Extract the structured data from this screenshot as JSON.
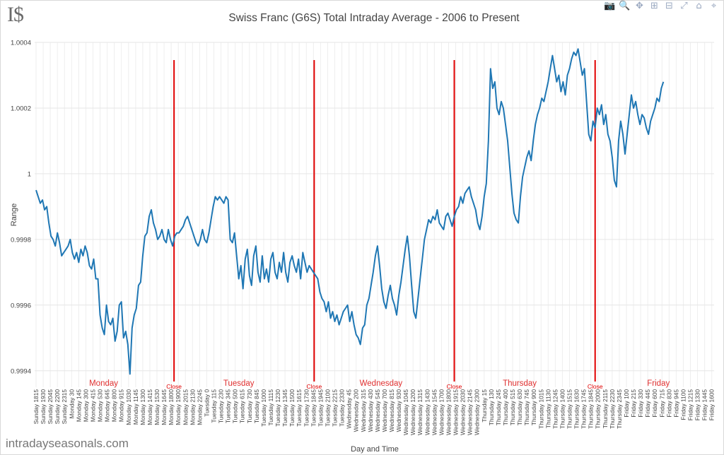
{
  "logo": "I$",
  "title": "Swiss Franc (G6S) Total Intraday Average - 2006 to Present",
  "watermark": "intradayseasonals.com",
  "modebar": [
    {
      "icon": "camera-icon",
      "glyph": "📷"
    },
    {
      "icon": "zoom-icon",
      "glyph": "🔍"
    },
    {
      "icon": "pan-icon",
      "glyph": "✥"
    },
    {
      "icon": "zoom-in-icon",
      "glyph": "⊞"
    },
    {
      "icon": "zoom-out-icon",
      "glyph": "⊟"
    },
    {
      "icon": "autoscale-icon",
      "glyph": "⤢"
    },
    {
      "icon": "home-icon",
      "glyph": "⌂"
    },
    {
      "icon": "spike-lines-icon",
      "glyph": "⌖"
    }
  ],
  "colors": {
    "line": "#1f77b4",
    "marker": "#e00000",
    "day_label": "#e03030",
    "grid": "#eeeeee"
  },
  "chart_data": {
    "type": "line",
    "xlabel": "Day and Time",
    "ylabel": "Range",
    "ylim": [
      0.99935,
      1.0004
    ],
    "yticks": [
      0.9994,
      0.9996,
      0.9998,
      1,
      1.0002,
      1.0004
    ],
    "ytick_labels": [
      "0.9994",
      "0.9996",
      "0.9998",
      "1",
      "1.0002",
      "1.0004"
    ],
    "grid": true,
    "x_tick_labels": [
      "Sunday 1815",
      "Sunday 1930",
      "Sunday 2045",
      "Sunday 2200",
      "Sunday 2315",
      "Monday 30",
      "Monday 145",
      "Monday 300",
      "Monday 415",
      "Monday 530",
      "Monday 645",
      "Monday 800",
      "Monday 915",
      "Monday 1030",
      "Monday 1145",
      "Monday 1300",
      "Monday 1415",
      "Monday 1530",
      "Monday 1645",
      "Monday 1800",
      "Monday 1900",
      "Monday 2015",
      "Monday 2130",
      "Monday 2245",
      "Tuesday 0",
      "Tuesday 115",
      "Tuesday 230",
      "Tuesday 345",
      "Tuesday 500",
      "Tuesday 615",
      "Tuesday 730",
      "Tuesday 845",
      "Tuesday 1000",
      "Tuesday 1115",
      "Tuesday 1230",
      "Tuesday 1345",
      "Tuesday 1500",
      "Tuesday 1615",
      "Tuesday 1730",
      "Tuesday 1845",
      "Tuesday 1945",
      "Tuesday 2100",
      "Tuesday 2215",
      "Tuesday 2330",
      "Wednesday 45",
      "Wednesday 200",
      "Wednesday 315",
      "Wednesday 430",
      "Wednesday 545",
      "Wednesday 700",
      "Wednesday 815",
      "Wednesday 930",
      "Wednesday 1045",
      "Wednesday 1200",
      "Wednesday 1315",
      "Wednesday 1430",
      "Wednesday 1545",
      "Wednesday 1700",
      "Wednesday 1800",
      "Wednesday 1915",
      "Wednesday 2030",
      "Wednesday 2145",
      "Wednesday 2300",
      "Thursday 15",
      "Thursday 130",
      "Thursday 245",
      "Thursday 400",
      "Thursday 515",
      "Thursday 630",
      "Thursday 745",
      "Thursday 900",
      "Thursday 1015",
      "Thursday 1130",
      "Thursday 1245",
      "Thursday 1400",
      "Thursday 1515",
      "Thursday 1630",
      "Thursday 1745",
      "Thursday 1845",
      "Thursday 2000",
      "Thursday 2115",
      "Thursday 2230",
      "Thursday 2345",
      "Friday 100",
      "Friday 215",
      "Friday 330",
      "Friday 445",
      "Friday 600",
      "Friday 715",
      "Friday 830",
      "Friday 945",
      "Friday 1100",
      "Friday 1215",
      "Friday 1330",
      "Friday 1445",
      "Friday 1600"
    ],
    "day_labels": [
      {
        "label": "Monday",
        "tick_index": 9.5
      },
      {
        "label": "Tuesday",
        "tick_index": 28.5
      },
      {
        "label": "Wednesday",
        "tick_index": 48.5
      },
      {
        "label": "Thursday",
        "tick_index": 68
      },
      {
        "label": "Friday",
        "tick_index": 87.5
      }
    ],
    "close_markers": [
      {
        "label": "Close",
        "tick_index": 19.4
      },
      {
        "label": "Close",
        "tick_index": 39.1
      },
      {
        "label": "Close",
        "tick_index": 58.8
      },
      {
        "label": "Close",
        "tick_index": 78.6
      }
    ],
    "series": [
      {
        "x_tick_index": [
          0,
          0.3,
          0.6,
          0.9,
          1.2,
          1.5,
          1.8,
          2.1,
          2.4,
          2.7,
          3,
          3.3,
          3.6,
          3.9,
          4.2,
          4.5,
          4.8,
          5.1,
          5.4,
          5.7,
          6,
          6.3,
          6.6,
          6.9,
          7.2,
          7.5,
          7.8,
          8.1,
          8.4,
          8.7,
          9,
          9.3,
          9.6,
          9.9,
          10.2,
          10.5,
          10.8,
          11.1,
          11.4,
          11.7,
          12,
          12.3,
          12.6,
          12.9,
          13.2,
          13.5,
          13.8,
          14.1,
          14.4,
          14.7,
          15,
          15.3,
          15.6,
          15.9,
          16.2,
          16.5,
          16.8,
          17.1,
          17.4,
          17.7,
          18,
          18.3,
          18.6,
          18.9,
          19.2,
          19.5,
          19.8,
          20.1,
          20.4,
          20.7,
          21,
          21.3,
          21.6,
          21.9,
          22.2,
          22.5,
          22.8,
          23.1,
          23.4,
          23.7,
          24,
          24.3,
          24.6,
          24.9,
          25.2,
          25.5,
          25.8,
          26.1,
          26.4,
          26.7,
          27,
          27.3,
          27.6,
          27.9,
          28.2,
          28.5,
          28.8,
          29.1,
          29.4,
          29.7,
          30,
          30.3,
          30.6,
          30.9,
          31.2,
          31.5,
          31.8,
          32.1,
          32.4,
          32.7,
          33,
          33.3,
          33.6,
          33.9,
          34.2,
          34.5,
          34.8,
          35.1,
          35.4,
          35.7,
          36,
          36.3,
          36.6,
          36.9,
          37.2,
          37.5,
          37.8,
          38.1,
          38.4,
          38.7,
          39,
          39.3,
          39.6,
          39.9,
          40.2,
          40.5,
          40.8,
          41.1,
          41.4,
          41.7,
          42,
          42.3,
          42.6,
          42.9,
          43.2,
          43.5,
          43.8,
          44.1,
          44.4,
          44.7,
          45,
          45.3,
          45.6,
          45.9,
          46.2,
          46.5,
          46.8,
          47.1,
          47.4,
          47.7,
          48,
          48.3,
          48.6,
          48.9,
          49.2,
          49.5,
          49.8,
          50.1,
          50.4,
          50.7,
          51,
          51.3,
          51.6,
          51.9,
          52.2,
          52.5,
          52.8,
          53.1,
          53.4,
          53.7,
          54,
          54.3,
          54.6,
          54.9,
          55.2,
          55.5,
          55.8,
          56.1,
          56.4,
          56.7,
          57,
          57.3,
          57.6,
          57.9,
          58.2,
          58.5,
          58.8,
          59.1,
          59.4,
          59.7,
          60,
          60.3,
          60.6,
          60.9,
          61.2,
          61.5,
          61.8,
          62.1,
          62.4,
          62.7,
          63,
          63.3,
          63.6,
          63.9,
          64.2,
          64.5,
          64.8,
          65.1,
          65.4,
          65.7,
          66,
          66.3,
          66.6,
          66.9,
          67.2,
          67.5,
          67.8,
          68.1,
          68.4,
          68.7,
          69,
          69.3,
          69.6,
          69.9,
          70.2,
          70.5,
          70.8,
          71.1,
          71.4,
          71.7,
          72,
          72.3,
          72.6,
          72.9,
          73.2,
          73.5,
          73.8,
          74.1,
          74.4,
          74.7,
          75,
          75.3,
          75.6,
          75.9,
          76.2,
          76.5,
          76.8,
          77.1,
          77.4,
          77.7,
          78,
          78.3,
          78.6,
          78.9,
          79.2,
          79.5,
          79.8,
          80.1,
          80.4,
          80.7,
          81,
          81.3,
          81.6,
          81.9,
          82.2,
          82.5,
          82.8,
          83.1,
          83.4,
          83.7,
          84,
          84.3,
          84.6,
          84.9,
          85.2,
          85.5,
          85.8,
          86.1,
          86.4,
          86.7,
          87,
          87.3,
          87.6,
          87.9,
          88.2,
          88.5,
          88.8,
          89.1,
          89.4,
          89.7,
          90,
          90.3,
          90.6,
          90.9,
          91.2,
          91.5,
          91.8,
          92.1,
          92.4,
          92.7,
          93,
          93.3,
          93.6,
          93.9,
          94.2,
          94.5,
          94.8,
          95,
          95.3
        ],
        "y": [
          0.99995,
          0.99993,
          0.99991,
          0.99992,
          0.99989,
          0.9999,
          0.99985,
          0.99981,
          0.9998,
          0.99978,
          0.99982,
          0.99979,
          0.99975,
          0.99976,
          0.99977,
          0.99978,
          0.9998,
          0.99976,
          0.99974,
          0.99976,
          0.99973,
          0.99977,
          0.99975,
          0.99978,
          0.99976,
          0.99972,
          0.99971,
          0.99974,
          0.99968,
          0.99968,
          0.99957,
          0.99953,
          0.99951,
          0.9996,
          0.99955,
          0.99954,
          0.99956,
          0.99949,
          0.99952,
          0.9996,
          0.99961,
          0.9995,
          0.99952,
          0.99948,
          0.99939,
          0.99953,
          0.99957,
          0.99959,
          0.99966,
          0.99967,
          0.99975,
          0.99981,
          0.99982,
          0.99987,
          0.99989,
          0.99985,
          0.99983,
          0.9998,
          0.99981,
          0.99983,
          0.9998,
          0.99979,
          0.99983,
          0.9998,
          0.99978,
          0.99981,
          0.99982,
          0.99982,
          0.99983,
          0.99984,
          0.99986,
          0.99987,
          0.99985,
          0.99983,
          0.99981,
          0.99979,
          0.99978,
          0.9998,
          0.99983,
          0.9998,
          0.99979,
          0.99982,
          0.99986,
          0.9999,
          0.99993,
          0.99992,
          0.99993,
          0.99992,
          0.99991,
          0.99993,
          0.99992,
          0.9998,
          0.99979,
          0.99982,
          0.99975,
          0.99968,
          0.99972,
          0.99965,
          0.99974,
          0.99977,
          0.99969,
          0.99966,
          0.99975,
          0.99978,
          0.9997,
          0.99967,
          0.99975,
          0.99968,
          0.99971,
          0.99967,
          0.99974,
          0.99976,
          0.9997,
          0.99968,
          0.99973,
          0.9997,
          0.99976,
          0.9997,
          0.99967,
          0.99973,
          0.99975,
          0.99972,
          0.9997,
          0.99974,
          0.99968,
          0.99976,
          0.99973,
          0.9997,
          0.99972,
          0.99971,
          0.9997,
          0.99969,
          0.99968,
          0.99964,
          0.99962,
          0.99961,
          0.99958,
          0.99961,
          0.99956,
          0.99958,
          0.99955,
          0.99957,
          0.99954,
          0.99956,
          0.99958,
          0.99959,
          0.9996,
          0.99955,
          0.99958,
          0.99954,
          0.99951,
          0.9995,
          0.99948,
          0.99953,
          0.99954,
          0.9996,
          0.99962,
          0.99966,
          0.9997,
          0.99975,
          0.99978,
          0.99972,
          0.99965,
          0.99961,
          0.99959,
          0.99963,
          0.99966,
          0.99962,
          0.9996,
          0.99957,
          0.99963,
          0.99967,
          0.99972,
          0.99977,
          0.99981,
          0.99975,
          0.99966,
          0.99958,
          0.99956,
          0.99962,
          0.99968,
          0.99974,
          0.9998,
          0.99983,
          0.99986,
          0.99985,
          0.99987,
          0.99986,
          0.99989,
          0.99985,
          0.99984,
          0.99983,
          0.99987,
          0.99988,
          0.99986,
          0.99984,
          0.99987,
          0.99989,
          0.9999,
          0.99993,
          0.99991,
          0.99994,
          0.99995,
          0.99996,
          0.99993,
          0.99991,
          0.99989,
          0.99985,
          0.99983,
          0.99987,
          0.99993,
          0.99997,
          1.0001,
          1.00032,
          1.00026,
          1.00028,
          1.0002,
          1.00018,
          1.00022,
          1.0002,
          1.00015,
          1.0001,
          1.00002,
          0.99994,
          0.99988,
          0.99986,
          0.99985,
          0.99993,
          0.99999,
          1.00002,
          1.00005,
          1.00007,
          1.00004,
          1.0001,
          1.00015,
          1.00018,
          1.0002,
          1.00023,
          1.00022,
          1.00025,
          1.00028,
          1.00032,
          1.00036,
          1.00032,
          1.00028,
          1.0003,
          1.00025,
          1.00028,
          1.00024,
          1.0003,
          1.00032,
          1.00035,
          1.00037,
          1.00036,
          1.00038,
          1.00034,
          1.0003,
          1.00032,
          1.00022,
          1.00012,
          1.0001,
          1.00016,
          1.00014,
          1.0002,
          1.00018,
          1.00021,
          1.00015,
          1.00018,
          1.00012,
          1.0001,
          1.00005,
          0.99998,
          0.99996,
          1.0001,
          1.00016,
          1.00012,
          1.00006,
          1.00012,
          1.00018,
          1.00024,
          1.0002,
          1.00022,
          1.00018,
          1.00015,
          1.00018,
          1.00017,
          1.00014,
          1.00012,
          1.00016,
          1.00018,
          1.0002,
          1.00023,
          1.00022,
          1.00026,
          1.00028
        ]
      }
    ]
  }
}
